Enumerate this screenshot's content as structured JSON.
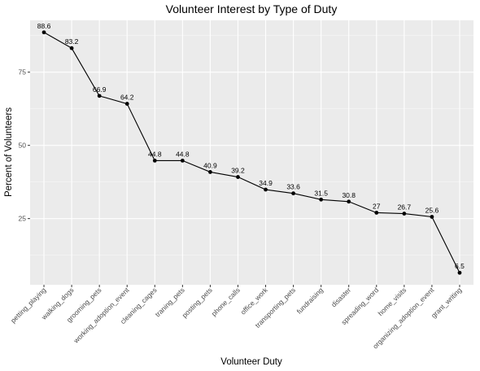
{
  "chart_data": {
    "type": "line",
    "title": "Volunteer Interest by Type of Duty",
    "xlabel": "Volunteer Duty",
    "ylabel": "Percent of Volunteers",
    "categories": [
      "petting_playing",
      "walking_dogs",
      "grooming_pets",
      "working_adoption_event",
      "cleaning_cages",
      "traning_pets",
      "posting_pets",
      "phone_calls",
      "office_work",
      "transporting_pets",
      "fundraising",
      "disaster",
      "spreading_word",
      "home_visits",
      "organizing_adoption_event",
      "grant_writing"
    ],
    "values": [
      88.6,
      83.2,
      66.9,
      64.2,
      44.8,
      44.8,
      40.9,
      39.2,
      34.9,
      33.6,
      31.5,
      30.8,
      27,
      26.7,
      25.6,
      6.5
    ],
    "value_labels": [
      "88.6",
      "83.2",
      "66.9",
      "64.2",
      "44.8",
      "44.8",
      "40.9",
      "39.2",
      "34.9",
      "33.6",
      "31.5",
      "30.8",
      "27",
      "26.7",
      "25.6",
      "6.5"
    ],
    "ylim": [
      2.4,
      92.7
    ],
    "yticks": [
      25,
      50,
      75
    ],
    "ytick_labels": [
      "25",
      "50",
      "75"
    ],
    "grid": true,
    "colors": {
      "panel": "#ebebeb",
      "grid_major": "#ffffff",
      "grid_minor": "#f5f5f5",
      "line": "#000000",
      "point": "#000000"
    }
  }
}
